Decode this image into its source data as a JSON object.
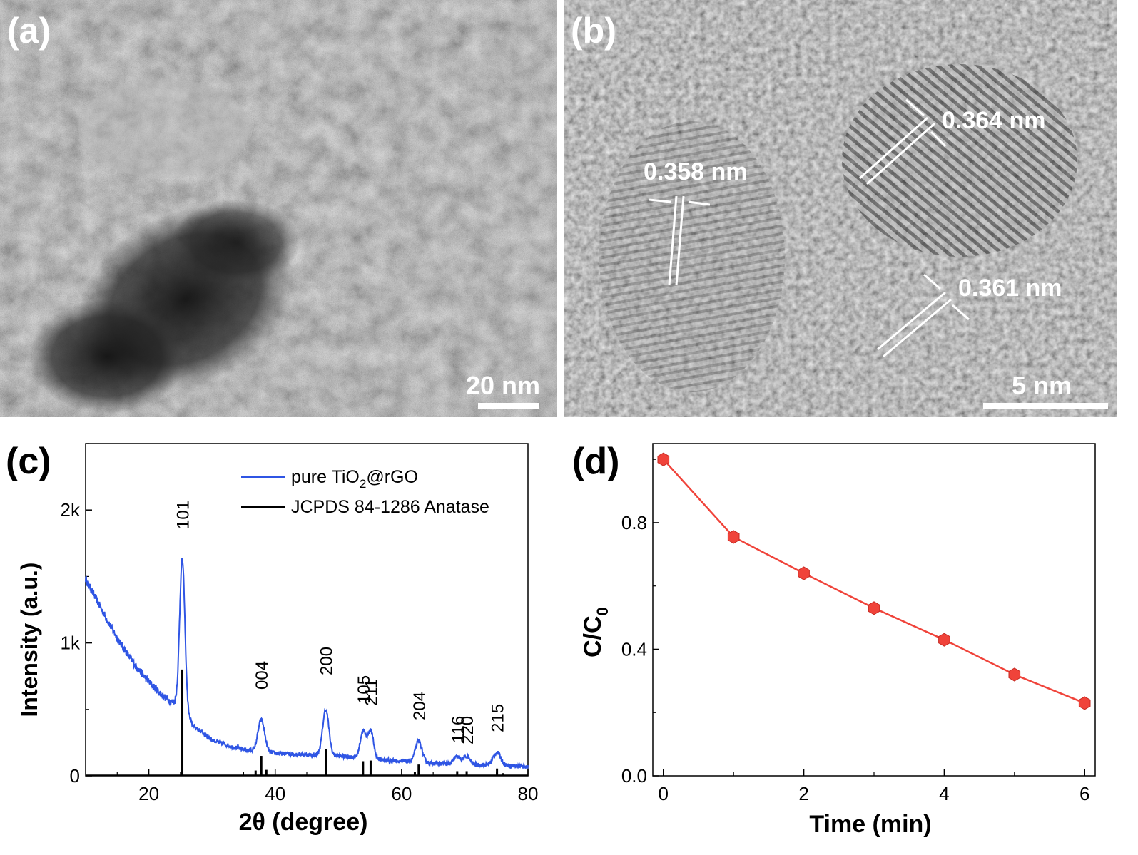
{
  "panel_labels": [
    "(a)",
    "(b)",
    "(c)",
    "(d)"
  ],
  "tem_a": {
    "scale_bar": "20 nm"
  },
  "tem_b": {
    "scale_bar": "5 nm",
    "spacings": [
      "0.364 nm",
      "0.358 nm",
      "0.361 nm"
    ]
  },
  "chart_data": [
    {
      "type": "line",
      "panel": "(c)",
      "xlabel": "2θ (degree)",
      "ylabel": "Intensity (a.u.)",
      "xlim": [
        10,
        80
      ],
      "ylim": [
        0,
        2500
      ],
      "xticks": [
        "20",
        "40",
        "60",
        "80"
      ],
      "yticks": [
        "0",
        "1k",
        "2k"
      ],
      "legend": {
        "placement": "top-right",
        "entries": [
          {
            "text": "pure TiO",
            "sub": "2",
            "suffix": "@rGO",
            "color": "#2f55e4"
          },
          {
            "text": "JCPDS 84-1286 Anatase",
            "sub": "",
            "suffix": "",
            "color": "#000000"
          }
        ]
      },
      "series": [
        {
          "name": "pure TiO2@rGO",
          "color": "#2f55e4",
          "baseline": [
            [
              10,
              1480
            ],
            [
              12,
              1300
            ],
            [
              14,
              1120
            ],
            [
              16,
              960
            ],
            [
              18,
              820
            ],
            [
              20,
              710
            ],
            [
              22,
              610
            ],
            [
              23.5,
              560
            ],
            [
              25,
              540
            ],
            [
              27,
              380
            ],
            [
              30,
              270
            ],
            [
              33,
              220
            ],
            [
              36,
              190
            ],
            [
              40,
              170
            ],
            [
              45,
              160
            ],
            [
              50,
              150
            ],
            [
              55,
              130
            ],
            [
              60,
              110
            ],
            [
              65,
              95
            ],
            [
              70,
              85
            ],
            [
              75,
              80
            ],
            [
              80,
              70
            ]
          ],
          "peaks": [
            [
              25.3,
              1110,
              0.55
            ],
            [
              37.8,
              240,
              0.7
            ],
            [
              48.0,
              345,
              0.65
            ],
            [
              53.9,
              200,
              0.6
            ],
            [
              55.1,
              210,
              0.6
            ],
            [
              62.7,
              160,
              0.7
            ],
            [
              68.8,
              55,
              0.7
            ],
            [
              70.3,
              60,
              0.7
            ],
            [
              75.1,
              95,
              0.8
            ]
          ]
        },
        {
          "name": "JCPDS 84-1286 Anatase",
          "color": "#000000",
          "sticks": [
            [
              25.3,
              800
            ],
            [
              36.9,
              40
            ],
            [
              37.8,
              150
            ],
            [
              38.6,
              45
            ],
            [
              48.0,
              200
            ],
            [
              53.9,
              110
            ],
            [
              55.1,
              115
            ],
            [
              62.1,
              30
            ],
            [
              62.7,
              85
            ],
            [
              68.8,
              35
            ],
            [
              70.3,
              35
            ],
            [
              75.1,
              55
            ],
            [
              76.0,
              20
            ]
          ]
        }
      ],
      "peak_labels": [
        {
          "text": "101",
          "x": 25.3
        },
        {
          "text": "004",
          "x": 37.8
        },
        {
          "text": "200",
          "x": 48.0
        },
        {
          "text": "105",
          "x": 53.9
        },
        {
          "text": "211",
          "x": 55.1
        },
        {
          "text": "204",
          "x": 62.7
        },
        {
          "text": "116",
          "x": 68.8
        },
        {
          "text": "220",
          "x": 70.3
        },
        {
          "text": "215",
          "x": 75.1
        }
      ]
    },
    {
      "type": "line",
      "panel": "(d)",
      "xlabel": "Time (min)",
      "ylabel": "C/C",
      "ylabel_sub": "0",
      "xlim": [
        -0.15,
        6.15
      ],
      "ylim": [
        0,
        1.05
      ],
      "xticks": [
        "0",
        "2",
        "4",
        "6"
      ],
      "yticks": [
        "0.0",
        "0.4",
        "0.8"
      ],
      "series": [
        {
          "name": "",
          "color": "#f0433a",
          "x": [
            0,
            1,
            2,
            3,
            4,
            5,
            6
          ],
          "y": [
            1.0,
            0.755,
            0.64,
            0.53,
            0.43,
            0.32,
            0.23
          ]
        }
      ]
    }
  ]
}
